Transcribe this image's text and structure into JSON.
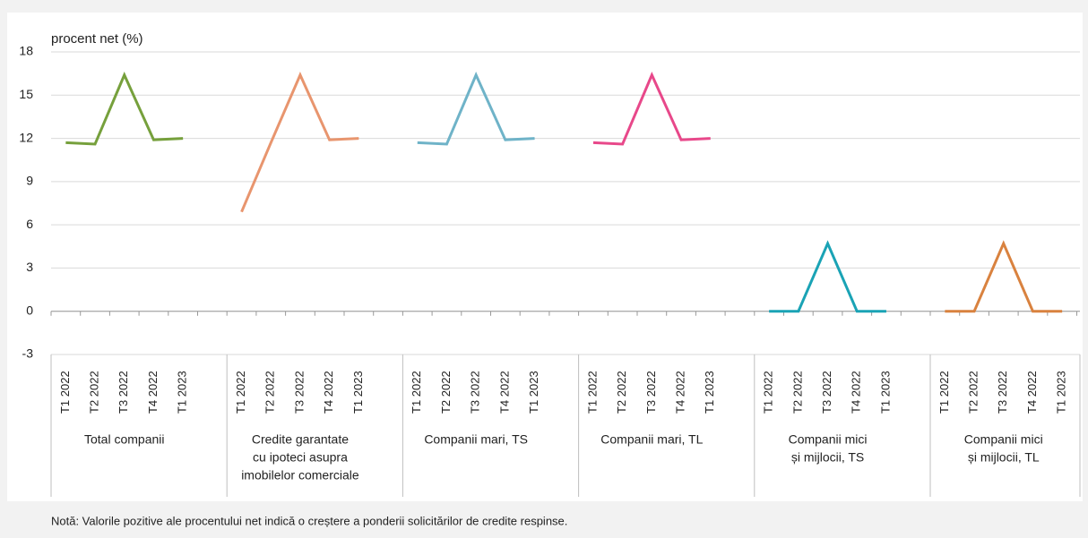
{
  "chart_data": {
    "type": "line",
    "ylabel": "procent net (%)",
    "ylim": [
      -3,
      18
    ],
    "yticks": [
      -3,
      0,
      3,
      6,
      9,
      12,
      15,
      18
    ],
    "grid": true,
    "series": [
      {
        "name": [
          "Total companii"
        ],
        "color": "#76a03c",
        "categories": [
          "T1 2022",
          "T2 2022",
          "T3 2022",
          "T4 2022",
          "T1 2023"
        ],
        "values": [
          11.7,
          11.6,
          16.4,
          11.9,
          12.0
        ]
      },
      {
        "name": [
          "Credite garantate",
          "cu ipoteci asupra",
          "imobilelor comerciale"
        ],
        "color": "#e8956e",
        "categories": [
          "T1 2022",
          "T2 2022",
          "T3 2022",
          "T4 2022",
          "T1 2023"
        ],
        "values": [
          6.9,
          11.7,
          16.4,
          11.9,
          12.0
        ]
      },
      {
        "name": [
          "Companii mari, TS"
        ],
        "color": "#6fb3c8",
        "categories": [
          "T1 2022",
          "T2 2022",
          "T3 2022",
          "T4 2022",
          "T1 2023"
        ],
        "values": [
          11.7,
          11.6,
          16.4,
          11.9,
          12.0
        ]
      },
      {
        "name": [
          "Companii mari, TL"
        ],
        "color": "#e8488a",
        "categories": [
          "T1 2022",
          "T2 2022",
          "T3 2022",
          "T4 2022",
          "T1 2023"
        ],
        "values": [
          11.7,
          11.6,
          16.4,
          11.9,
          12.0
        ]
      },
      {
        "name": [
          "Companii mici",
          "și mijlocii, TS"
        ],
        "color": "#1aa3b5",
        "categories": [
          "T1 2022",
          "T2 2022",
          "T3 2022",
          "T4 2022",
          "T1 2023"
        ],
        "values": [
          0,
          0,
          4.7,
          0,
          0
        ]
      },
      {
        "name": [
          "Companii mici",
          "și mijlocii, TL"
        ],
        "color": "#d9823f",
        "categories": [
          "T1 2022",
          "T2 2022",
          "T3 2022",
          "T4 2022",
          "T1 2023"
        ],
        "values": [
          0,
          0,
          4.7,
          0,
          0
        ]
      }
    ],
    "note": "Notă: Valorile pozitive ale procentului net indică o creștere a ponderii solicitărilor de credite respinse."
  }
}
